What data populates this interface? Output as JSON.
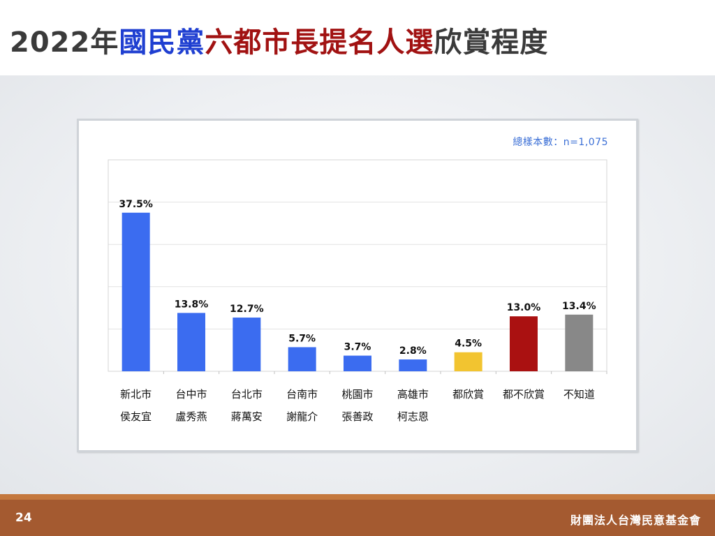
{
  "title": {
    "segments": [
      {
        "text": "2022年",
        "color": "#3a3a3a"
      },
      {
        "text": "國民黨",
        "color": "#1f3fd1"
      },
      {
        "text": "六都市長提名人選",
        "color": "#a11212"
      },
      {
        "text": "欣賞程度",
        "color": "#3a3a3a"
      }
    ]
  },
  "chart_data": {
    "type": "bar",
    "categories": [
      [
        "新北市",
        "侯友宜"
      ],
      [
        "台中市",
        "盧秀燕"
      ],
      [
        "台北市",
        "蔣萬安"
      ],
      [
        "台南市",
        "謝龍介"
      ],
      [
        "桃園市",
        "張善政"
      ],
      [
        "高雄市",
        "柯志恩"
      ],
      [
        "都欣賞"
      ],
      [
        "都不欣賞"
      ],
      [
        "不知道"
      ]
    ],
    "values": [
      37.5,
      13.8,
      12.7,
      5.7,
      3.7,
      2.8,
      4.5,
      13.0,
      13.4
    ],
    "value_labels": [
      "37.5%",
      "13.8%",
      "12.7%",
      "5.7%",
      "3.7%",
      "2.8%",
      "4.5%",
      "13.0%",
      "13.4%"
    ],
    "bar_colors": [
      "#3b6cf0",
      "#3b6cf0",
      "#3b6cf0",
      "#3b6cf0",
      "#3b6cf0",
      "#3b6cf0",
      "#f2c430",
      "#aa1111",
      "#888888"
    ],
    "ylim": [
      0,
      50
    ],
    "grid": true,
    "annotation": "總樣本數：n=1,075"
  },
  "footer": {
    "page_number": "24",
    "organization": "財團法人台灣民意基金會"
  }
}
